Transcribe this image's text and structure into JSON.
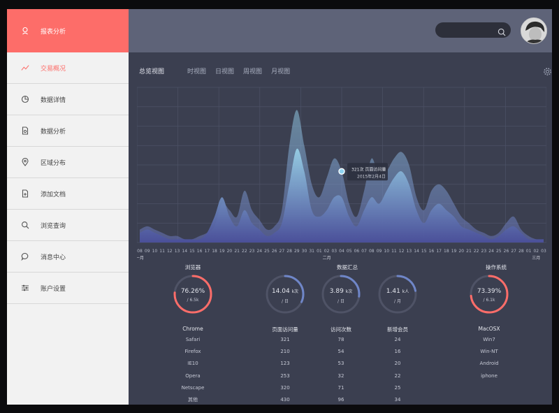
{
  "sidebar": {
    "brand": {
      "label": "报表分析",
      "icon": "user-outline-icon"
    },
    "items": [
      {
        "label": "交易概况",
        "icon": "trend-line-icon",
        "active": true
      },
      {
        "label": "数据详情",
        "icon": "pie-chart-icon"
      },
      {
        "label": "数据分析",
        "icon": "document-chart-icon"
      },
      {
        "label": "区域分布",
        "icon": "map-pin-icon"
      },
      {
        "label": "添加文档",
        "icon": "add-document-icon"
      },
      {
        "label": "浏览查询",
        "icon": "search-icon"
      },
      {
        "label": "消息中心",
        "icon": "chat-bubble-icon"
      },
      {
        "label": "账户设置",
        "icon": "sliders-icon"
      }
    ]
  },
  "header": {
    "search": {
      "value": "",
      "placeholder": ""
    }
  },
  "tabs": [
    "总览视图",
    "时视图",
    "日视图",
    "周视图",
    "月视图"
  ],
  "colors": {
    "accent": "#fd6d69",
    "bg": "#3b3f50",
    "header": "#5e6378",
    "wave": "#8ec3dd",
    "ring_track": "#4f5366",
    "ring_blue": "#6f86c8"
  },
  "chart_data": {
    "type": "area",
    "x": [
      "08",
      "09",
      "10",
      "11",
      "12",
      "13",
      "14",
      "15",
      "16",
      "17",
      "18",
      "19",
      "20",
      "21",
      "22",
      "23",
      "24",
      "25",
      "26",
      "27",
      "28",
      "29",
      "30",
      "31",
      "01",
      "02",
      "03",
      "04",
      "05",
      "06",
      "07",
      "08",
      "09",
      "10",
      "11",
      "12",
      "13",
      "14",
      "15",
      "16",
      "17",
      "18",
      "19",
      "20",
      "21",
      "22",
      "23",
      "24",
      "25",
      "26",
      "27",
      "28",
      "01",
      "02",
      "03"
    ],
    "month_labels": [
      {
        "label": "一月",
        "at": 0
      },
      {
        "label": "二月",
        "at": 25
      },
      {
        "label": "三月",
        "at": 53
      }
    ],
    "series": [
      {
        "values": [
          4,
          5,
          4,
          3,
          2,
          2,
          1,
          1,
          2,
          3,
          5,
          12,
          10,
          8,
          16,
          10,
          7,
          4,
          5,
          10,
          30,
          41,
          30,
          18,
          14,
          20,
          26,
          22,
          12,
          8,
          16,
          26,
          20,
          22,
          26,
          28,
          24,
          14,
          10,
          16,
          18,
          16,
          12,
          8,
          6,
          4,
          3,
          2,
          3,
          6,
          8,
          4,
          2,
          1,
          1
        ]
      },
      {
        "values": [
          3,
          4,
          3,
          2,
          1,
          1,
          1,
          1,
          1,
          3,
          8,
          14,
          8,
          5,
          10,
          6,
          4,
          2,
          3,
          6,
          18,
          29,
          22,
          10,
          8,
          10,
          14,
          14,
          8,
          5,
          10,
          14,
          12,
          16,
          20,
          22,
          18,
          10,
          6,
          10,
          12,
          10,
          8,
          5,
          4,
          3,
          2,
          1,
          2,
          4,
          5,
          3,
          1,
          1,
          1
        ]
      }
    ],
    "tooltip": {
      "at": 27,
      "value_label": "321次 页面访问量",
      "date_label": "2015年2月4日"
    },
    "ylim": [
      0,
      48
    ]
  },
  "stats": {
    "browser": {
      "title": "浏览器",
      "ring": {
        "value": "76.26%",
        "sub": "/ 6.5k",
        "fraction": 0.7626
      },
      "header": "Chrome",
      "rows": [
        "Safari",
        "Firefox",
        "IE10",
        "Opera",
        "Netscape",
        "其他"
      ]
    },
    "summary_title": "数据汇总",
    "page_views": {
      "ring": {
        "value": "14.04",
        "unit": "k次",
        "sub": "/ 日",
        "fraction": 0.32
      },
      "header": "页面访问量",
      "rows": [
        "321",
        "210",
        "123",
        "253",
        "320",
        "430"
      ]
    },
    "visits": {
      "ring": {
        "value": "3.89",
        "unit": "k次",
        "sub": "/ 日",
        "fraction": 0.27
      },
      "header": "访问次数",
      "rows": [
        "78",
        "54",
        "53",
        "32",
        "71",
        "96"
      ]
    },
    "members": {
      "ring": {
        "value": "1.41",
        "unit": "k人",
        "sub": "/ 月",
        "fraction": 0.22
      },
      "header": "新增会员",
      "rows": [
        "24",
        "16",
        "20",
        "22",
        "25",
        "34"
      ]
    },
    "os": {
      "title": "操作系统",
      "ring": {
        "value": "73.39%",
        "sub": "/ 6.1k",
        "fraction": 0.7339
      },
      "header": "MacOSX",
      "rows": [
        "Win7",
        "Win-NT",
        "Android",
        "iphone"
      ]
    }
  }
}
